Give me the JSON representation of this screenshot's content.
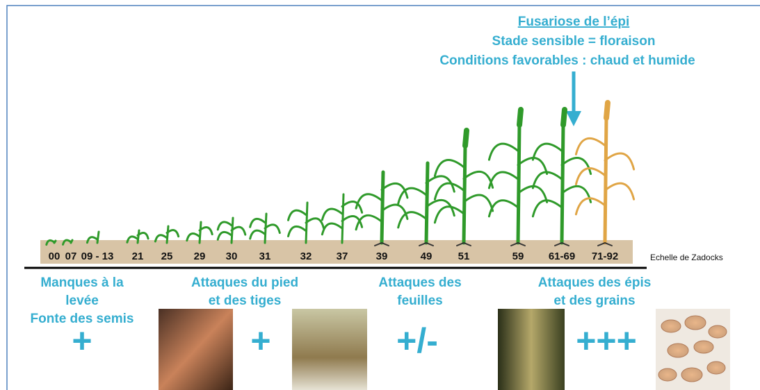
{
  "header": {
    "title": "Fusariose de l’épi",
    "line1": "Stade sensible = floraison",
    "line2": "Conditions favorables : chaud et humide"
  },
  "stages": [
    "00",
    "07",
    "09 - 13",
    "21",
    "25",
    "29",
    "30",
    "31",
    "32",
    "37",
    "39",
    "49",
    "51",
    "59",
    "61-69",
    "71-92"
  ],
  "scale_label": "Echelle de Zadocks",
  "groups": [
    {
      "label_lines": [
        "Manques à la",
        "levée",
        "Fonte des semis"
      ],
      "level": "+"
    },
    {
      "label_lines": [
        "Attaques du pied",
        "et des tiges"
      ],
      "level": "+"
    },
    {
      "label_lines": [
        "Attaques des",
        "feuilles"
      ],
      "level": "+/-"
    },
    {
      "label_lines": [
        "Attaques des épis",
        "et des grains"
      ],
      "level": "+++"
    }
  ]
}
